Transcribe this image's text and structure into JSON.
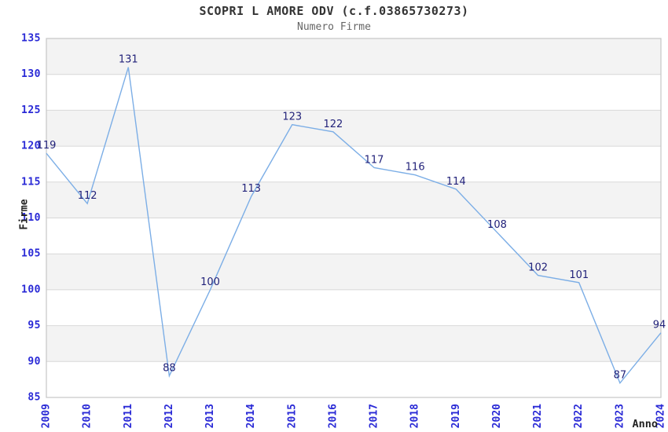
{
  "header": {
    "title": "SCOPRI L AMORE ODV (c.f.03865730273)",
    "subtitle": "Numero Firme"
  },
  "axes": {
    "y_title": "Firme",
    "x_title": "Anno"
  },
  "chart_data": {
    "type": "line",
    "title": "SCOPRI L AMORE ODV (c.f.03865730273)",
    "subtitle": "Numero Firme",
    "xlabel": "Anno",
    "ylabel": "Firme",
    "categories": [
      "2009",
      "2010",
      "2011",
      "2012",
      "2013",
      "2014",
      "2015",
      "2016",
      "2017",
      "2018",
      "2019",
      "2020",
      "2021",
      "2022",
      "2023",
      "2024"
    ],
    "series": [
      {
        "name": "Numero Firme",
        "values": [
          119,
          112,
          131,
          88,
          100,
          113,
          123,
          122,
          117,
          116,
          114,
          108,
          102,
          101,
          87,
          94
        ]
      }
    ],
    "ylim": [
      85,
      135
    ],
    "ytick_step": 5,
    "grid": true,
    "alternating_bands": true,
    "legend_position": "none",
    "data_labels": true,
    "markers": false
  },
  "colors": {
    "line": "#7caee6",
    "tick_label": "#2929d6",
    "data_label": "#22227a",
    "band": "#f3f3f3",
    "gridline": "#d8d8d8",
    "plot_border": "#c6c6c6",
    "title": "#333333",
    "subtitle": "#666666",
    "axis_title": "#222222",
    "background": "#ffffff"
  }
}
